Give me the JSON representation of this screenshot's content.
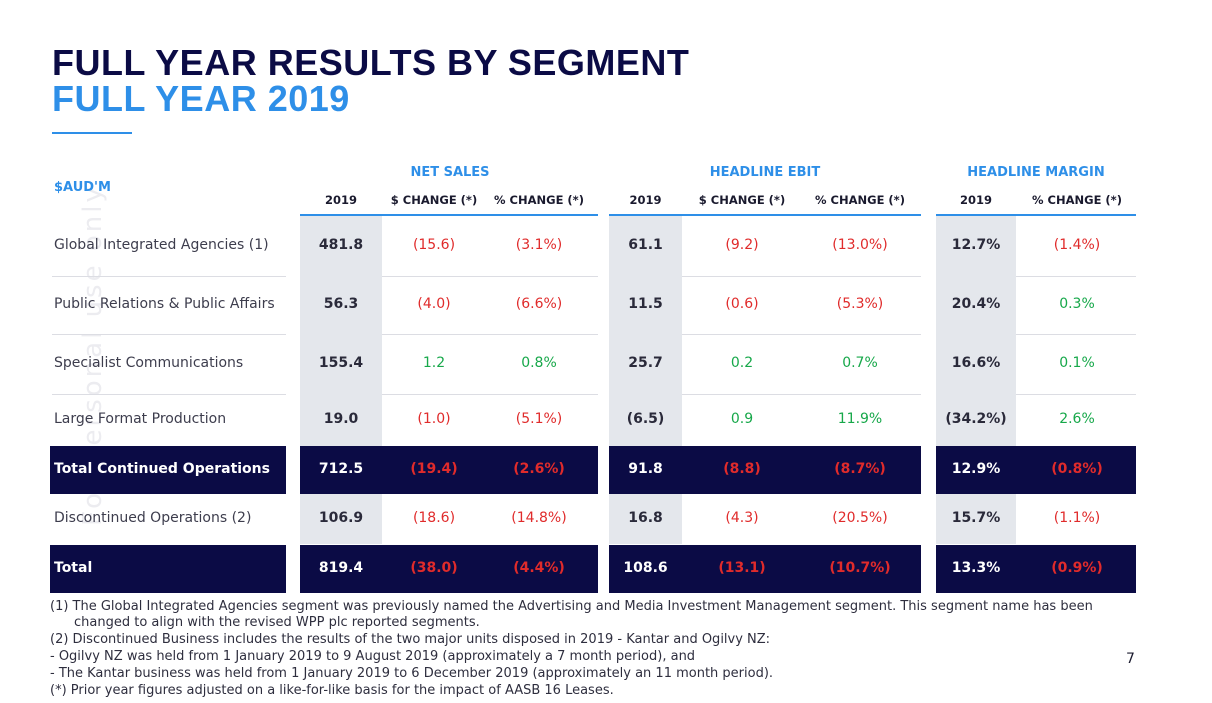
{
  "title": {
    "line1": "FULL YEAR RESULTS BY SEGMENT",
    "line2": "FULL YEAR 2019"
  },
  "side_text": "For personal use only",
  "table": {
    "unit_label": "$AUD'M",
    "groups": {
      "net_sales": "NET SALES",
      "headline_ebit": "HEADLINE EBIT",
      "headline_margin": "HEADLINE MARGIN"
    },
    "columns": [
      "2019",
      "$ CHANGE (*)",
      "% CHANGE (*)",
      "2019",
      "$ CHANGE (*)",
      "% CHANGE (*)",
      "2019",
      "% CHANGE (*)"
    ],
    "rows": [
      {
        "label": "Global Integrated Agencies (1)",
        "values": [
          "481.8",
          "(15.6)",
          "(3.1%)",
          "61.1",
          "(9.2)",
          "(13.0%)",
          "12.7%",
          "(1.4%)"
        ]
      },
      {
        "label": "Public Relations & Public Affairs",
        "values": [
          "56.3",
          "(4.0)",
          "(6.6%)",
          "11.5",
          "(0.6)",
          "(5.3%)",
          "20.4%",
          "0.3%"
        ]
      },
      {
        "label": "Specialist Communications",
        "values": [
          "155.4",
          "1.2",
          "0.8%",
          "25.7",
          "0.2",
          "0.7%",
          "16.6%",
          "0.1%"
        ]
      },
      {
        "label": "Large Format Production",
        "values": [
          "19.0",
          "(1.0)",
          "(5.1%)",
          "(6.5)",
          "0.9",
          "11.9%",
          "(34.2%)",
          "2.6%"
        ]
      },
      {
        "label": "Total Continued Operations",
        "values": [
          "712.5",
          "(19.4)",
          "(2.6%)",
          "91.8",
          "(8.8)",
          "(8.7%)",
          "12.9%",
          "(0.8%)"
        ]
      },
      {
        "label": "Discontinued Operations (2)",
        "values": [
          "106.9",
          "(18.6)",
          "(14.8%)",
          "16.8",
          "(4.3)",
          "(20.5%)",
          "15.7%",
          "(1.1%)"
        ]
      },
      {
        "label": "Total",
        "values": [
          "819.4",
          "(38.0)",
          "(4.4%)",
          "108.6",
          "(13.1)",
          "(10.7%)",
          "13.3%",
          "(0.9%)"
        ]
      }
    ]
  },
  "colors": {
    "navy": "#0b0b45",
    "accent_blue": "#2e8fe8",
    "negative": "#e02b2b",
    "positive": "#17a84a",
    "shade": "#e4e7ec"
  },
  "footnotes": [
    "(1)  The Global Integrated Agencies segment was previously named the Advertising and Media Investment Management segment. This segment name has been",
    "changed to align with the revised WPP plc reported segments.",
    "(2)  Discontinued Business includes the results of the two major units disposed in 2019 -  Kantar and Ogilvy NZ:",
    "-   Ogilvy NZ was held from 1 January 2019 to 9 August 2019 (approximately a 7 month period), and",
    "-   The Kantar business was held from 1 January 2019 to 6 December 2019 (approximately an 11 month period).",
    "(*) Prior year figures adjusted on a like-for-like basis for the impact of AASB 16 Leases."
  ],
  "page_number": "7"
}
